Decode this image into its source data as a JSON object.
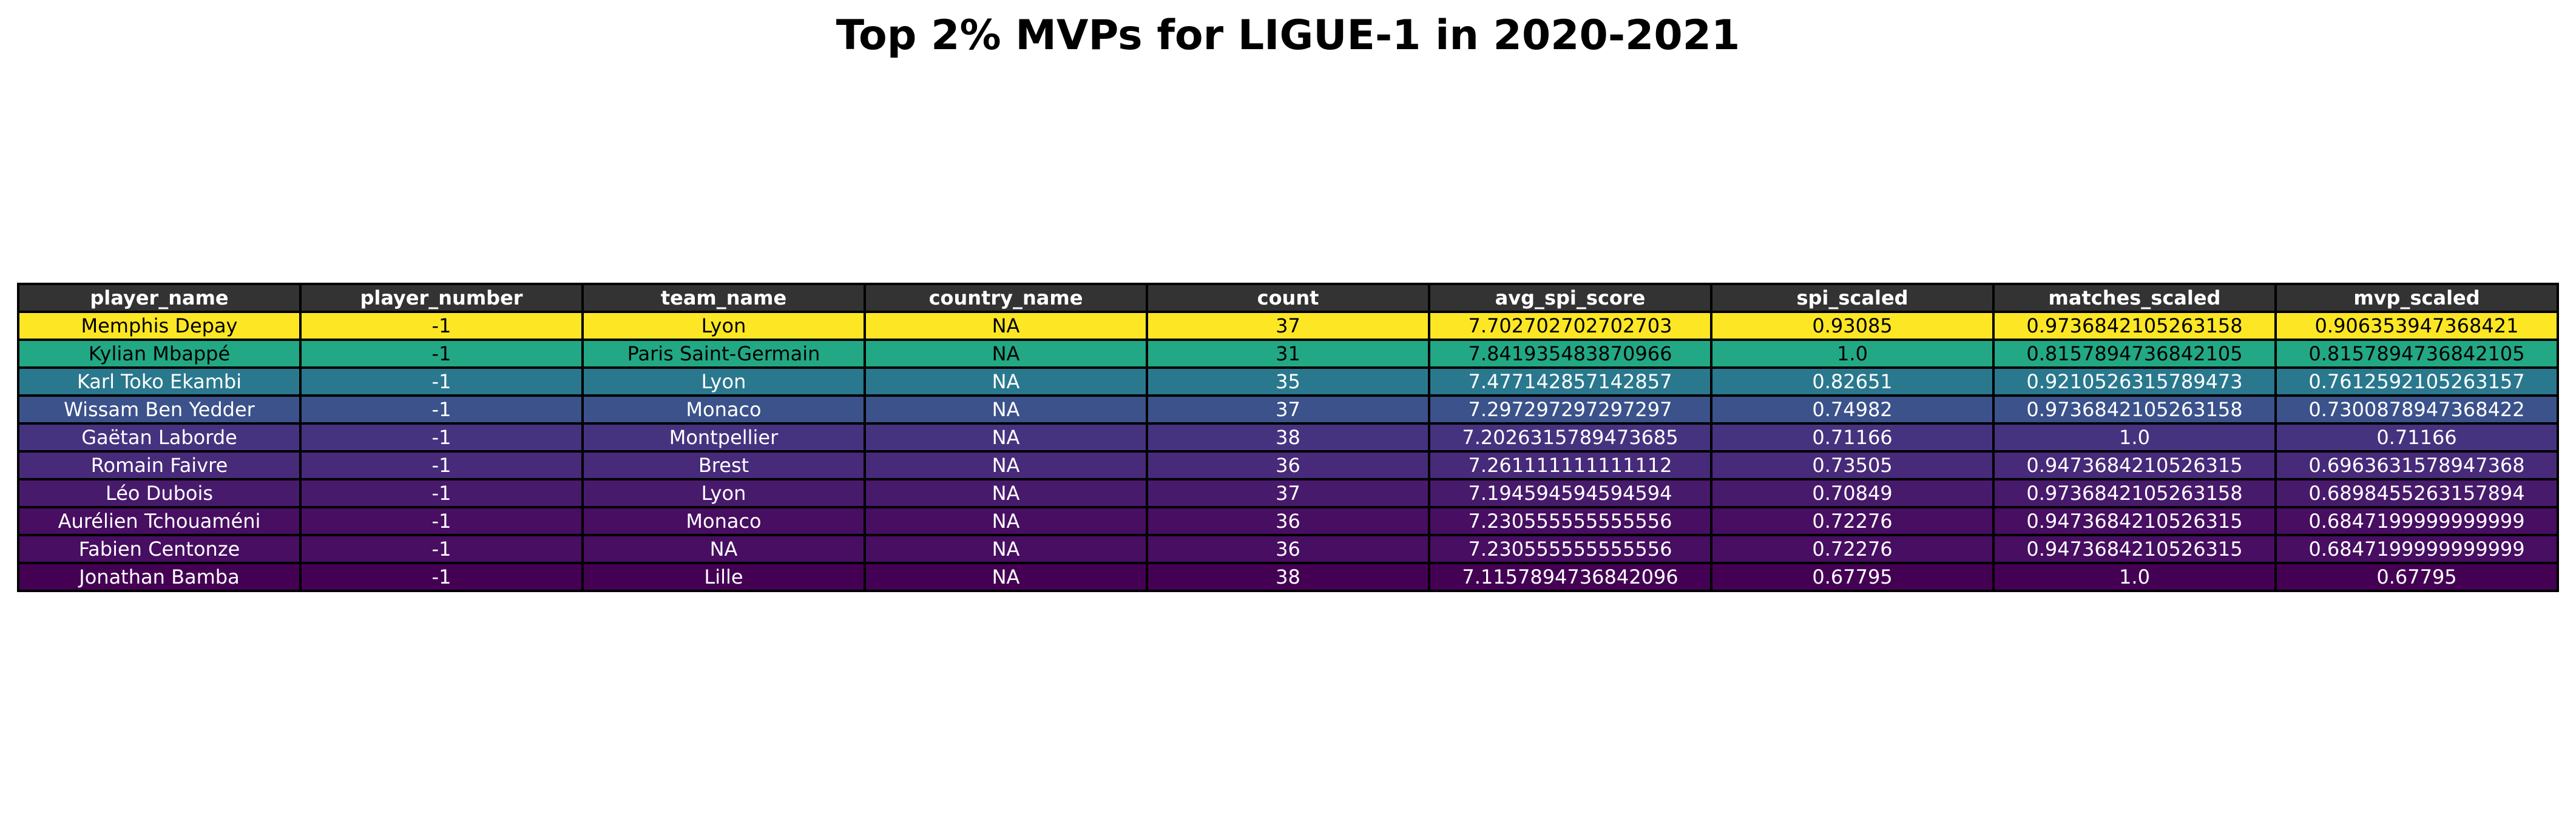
{
  "chart_data": {
    "type": "table",
    "title": "Top 2% MVPs for LIGUE-1 in 2020-2021",
    "columns": [
      "player_name",
      "player_number",
      "team_name",
      "country_name",
      "count",
      "avg_spi_score",
      "spi_scaled",
      "matches_scaled",
      "mvp_scaled"
    ],
    "rows": [
      {
        "cells": [
          "Memphis Depay",
          "-1",
          "Lyon",
          "NA",
          "37",
          "7.702702702702703",
          "0.93085",
          "0.9736842105263158",
          "0.906353947368421"
        ],
        "bg": "#fde725",
        "fg": "#000000"
      },
      {
        "cells": [
          "Kylian Mbappé",
          "-1",
          "Paris Saint-Germain",
          "NA",
          "31",
          "7.841935483870966",
          "1.0",
          "0.8157894736842105",
          "0.8157894736842105"
        ],
        "bg": "#22a884",
        "fg": "#000000"
      },
      {
        "cells": [
          "Karl Toko Ekambi",
          "-1",
          "Lyon",
          "NA",
          "35",
          "7.477142857142857",
          "0.82651",
          "0.9210526315789473",
          "0.7612592105263157"
        ],
        "bg": "#2a788e",
        "fg": "#ffffff"
      },
      {
        "cells": [
          "Wissam Ben Yedder",
          "-1",
          "Monaco",
          "NA",
          "37",
          "7.297297297297297",
          "0.74982",
          "0.9736842105263158",
          "0.7300878947368422"
        ],
        "bg": "#3b528b",
        "fg": "#ffffff"
      },
      {
        "cells": [
          "Gaëtan Laborde",
          "-1",
          "Montpellier",
          "NA",
          "38",
          "7.2026315789473685",
          "0.71166",
          "1.0",
          "0.71166"
        ],
        "bg": "#46337f",
        "fg": "#ffffff"
      },
      {
        "cells": [
          "Romain Faivre",
          "-1",
          "Brest",
          "NA",
          "36",
          "7.261111111111112",
          "0.73505",
          "0.9473684210526315",
          "0.6963631578947368"
        ],
        "bg": "#472a7a",
        "fg": "#ffffff"
      },
      {
        "cells": [
          "Léo Dubois",
          "-1",
          "Lyon",
          "NA",
          "37",
          "7.194594594594594",
          "0.70849",
          "0.9736842105263158",
          "0.6898455263157894"
        ],
        "bg": "#481a6c",
        "fg": "#ffffff"
      },
      {
        "cells": [
          "Aurélien Tchouaméni",
          "-1",
          "Monaco",
          "NA",
          "36",
          "7.230555555555556",
          "0.72276",
          "0.9473684210526315",
          "0.6847199999999999"
        ],
        "bg": "#470e61",
        "fg": "#ffffff"
      },
      {
        "cells": [
          "Fabien Centonze",
          "-1",
          "NA",
          "NA",
          "36",
          "7.230555555555556",
          "0.72276",
          "0.9473684210526315",
          "0.6847199999999999"
        ],
        "bg": "#470e61",
        "fg": "#ffffff"
      },
      {
        "cells": [
          "Jonathan Bamba",
          "-1",
          "Lille",
          "NA",
          "38",
          "7.1157894736842096",
          "0.67795",
          "1.0",
          "0.67795"
        ],
        "bg": "#440154",
        "fg": "#ffffff"
      }
    ]
  }
}
